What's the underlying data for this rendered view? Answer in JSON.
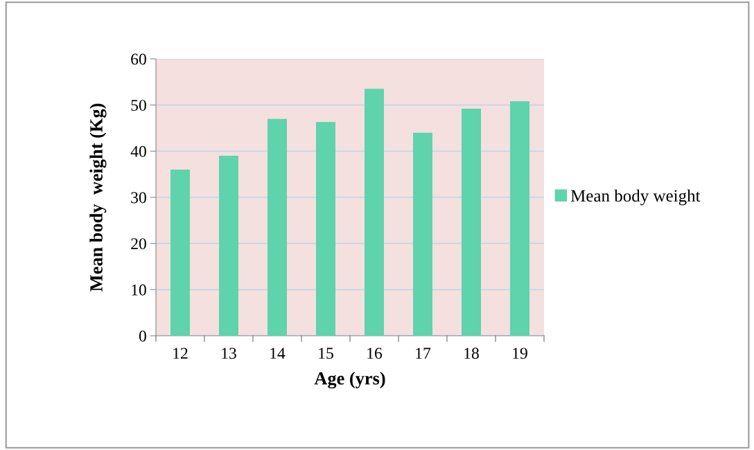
{
  "chart_data": {
    "type": "bar",
    "xlabel": "Age (yrs)",
    "ylabel": "Mean body  weight (Kg)",
    "categories": [
      "12",
      "13",
      "14",
      "15",
      "16",
      "17",
      "18",
      "19"
    ],
    "series": [
      {
        "name": "Mean body weight",
        "color": "#5fd3ab",
        "values": [
          36,
          39,
          47,
          46.3,
          53.5,
          44,
          49.2,
          50.8
        ]
      }
    ],
    "ylim": [
      0,
      60
    ],
    "yticks": [
      0,
      10,
      20,
      30,
      40,
      50,
      60
    ],
    "grid": "y",
    "legend": "right"
  }
}
